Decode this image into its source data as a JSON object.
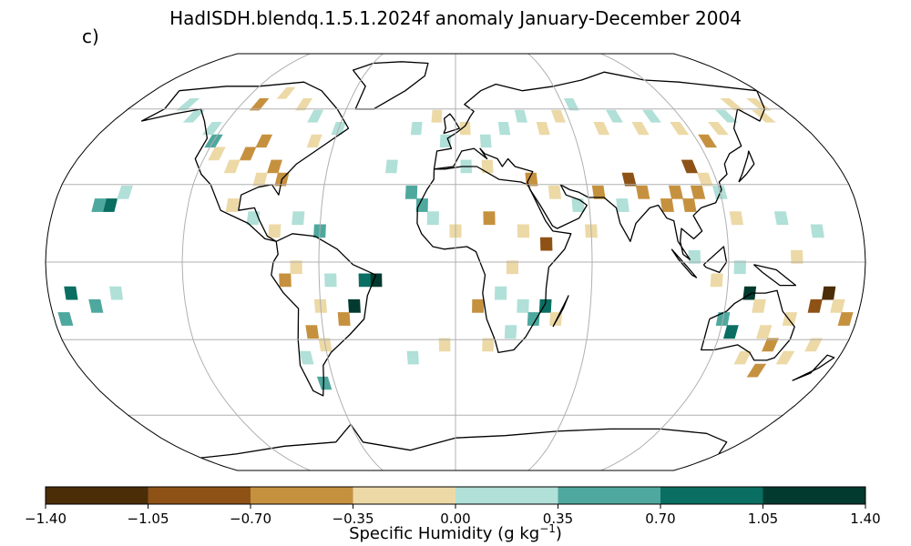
{
  "title": "HadISDH.blendq.1.5.1.2024f anomaly January-December 2004",
  "panel_label": "c)",
  "colorbar": {
    "label_text": "Specific Humidity (g kg",
    "label_sup": "−1",
    "label_close": ")",
    "ticks": [
      "−1.40",
      "−1.05",
      "−0.70",
      "−0.35",
      "0.00",
      "0.35",
      "0.70",
      "1.05",
      "1.40"
    ],
    "colors": [
      "#4b2d08",
      "#8e5216",
      "#c6913f",
      "#ecd9a6",
      "#b0e0d8",
      "#4ea89e",
      "#0a6e62",
      "#023a30"
    ]
  },
  "map": {
    "projection": "Robinson",
    "gridlines": true,
    "anomaly_cells": [
      {
        "lon": -100,
        "lat": 42,
        "bin": 2
      },
      {
        "lon": -95,
        "lat": 47,
        "bin": 2
      },
      {
        "lon": -85,
        "lat": 37,
        "bin": 2
      },
      {
        "lon": -80,
        "lat": 32,
        "bin": 2
      },
      {
        "lon": -90,
        "lat": 32,
        "bin": 3
      },
      {
        "lon": -105,
        "lat": 37,
        "bin": 3
      },
      {
        "lon": -115,
        "lat": 42,
        "bin": 3
      },
      {
        "lon": -120,
        "lat": 47,
        "bin": 5
      },
      {
        "lon": -125,
        "lat": 52,
        "bin": 4
      },
      {
        "lon": -140,
        "lat": 57,
        "bin": 4
      },
      {
        "lon": -150,
        "lat": 62,
        "bin": 4
      },
      {
        "lon": -110,
        "lat": 62,
        "bin": 2
      },
      {
        "lon": -100,
        "lat": 67,
        "bin": 3
      },
      {
        "lon": -85,
        "lat": 62,
        "bin": 3
      },
      {
        "lon": -75,
        "lat": 57,
        "bin": 4
      },
      {
        "lon": -60,
        "lat": 52,
        "bin": 4
      },
      {
        "lon": -70,
        "lat": 47,
        "bin": 3
      },
      {
        "lon": -155,
        "lat": 22,
        "bin": 6
      },
      {
        "lon": -160,
        "lat": 22,
        "bin": 5
      },
      {
        "lon": -150,
        "lat": 27,
        "bin": 4
      },
      {
        "lon": -100,
        "lat": 22,
        "bin": 3
      },
      {
        "lon": -90,
        "lat": 17,
        "bin": 4
      },
      {
        "lon": -80,
        "lat": 12,
        "bin": 3
      },
      {
        "lon": -70,
        "lat": 17,
        "bin": 4
      },
      {
        "lon": -60,
        "lat": 12,
        "bin": 5
      },
      {
        "lon": -35,
        "lat": -7,
        "bin": 7
      },
      {
        "lon": -40,
        "lat": -7,
        "bin": 6
      },
      {
        "lon": -45,
        "lat": -17,
        "bin": 7
      },
      {
        "lon": -50,
        "lat": -22,
        "bin": 2
      },
      {
        "lon": -60,
        "lat": -17,
        "bin": 3
      },
      {
        "lon": -65,
        "lat": -27,
        "bin": 2
      },
      {
        "lon": -60,
        "lat": -32,
        "bin": 3
      },
      {
        "lon": -70,
        "lat": -37,
        "bin": 4
      },
      {
        "lon": -75,
        "lat": -7,
        "bin": 2
      },
      {
        "lon": -70,
        "lat": -2,
        "bin": 3
      },
      {
        "lon": -55,
        "lat": -7,
        "bin": 4
      },
      {
        "lon": -65,
        "lat": -47,
        "bin": 5
      },
      {
        "lon": -170,
        "lat": -12,
        "bin": 6
      },
      {
        "lon": -160,
        "lat": -17,
        "bin": 5
      },
      {
        "lon": -175,
        "lat": -22,
        "bin": 5
      },
      {
        "lon": -150,
        "lat": -12,
        "bin": 4
      },
      {
        "lon": -30,
        "lat": 37,
        "bin": 4
      },
      {
        "lon": -20,
        "lat": 52,
        "bin": 4
      },
      {
        "lon": -10,
        "lat": 57,
        "bin": 3
      },
      {
        "lon": -5,
        "lat": 47,
        "bin": 4
      },
      {
        "lon": 5,
        "lat": 52,
        "bin": 3
      },
      {
        "lon": 15,
        "lat": 47,
        "bin": 4
      },
      {
        "lon": 25,
        "lat": 52,
        "bin": 4
      },
      {
        "lon": 35,
        "lat": 57,
        "bin": 4
      },
      {
        "lon": 45,
        "lat": 52,
        "bin": 3
      },
      {
        "lon": 55,
        "lat": 57,
        "bin": 3
      },
      {
        "lon": 65,
        "lat": 62,
        "bin": 4
      },
      {
        "lon": 75,
        "lat": 52,
        "bin": 3
      },
      {
        "lon": 85,
        "lat": 57,
        "bin": 4
      },
      {
        "lon": 95,
        "lat": 52,
        "bin": 3
      },
      {
        "lon": 105,
        "lat": 57,
        "bin": 4
      },
      {
        "lon": 115,
        "lat": 52,
        "bin": 3
      },
      {
        "lon": 125,
        "lat": 47,
        "bin": 2
      },
      {
        "lon": 135,
        "lat": 52,
        "bin": 3
      },
      {
        "lon": 145,
        "lat": 57,
        "bin": 4
      },
      {
        "lon": 155,
        "lat": 62,
        "bin": 3
      },
      {
        "lon": 165,
        "lat": 57,
        "bin": 3
      },
      {
        "lon": 170,
        "lat": 62,
        "bin": 3
      },
      {
        "lon": 5,
        "lat": 37,
        "bin": 4
      },
      {
        "lon": 15,
        "lat": 37,
        "bin": 3
      },
      {
        "lon": 35,
        "lat": 32,
        "bin": 2
      },
      {
        "lon": 45,
        "lat": 27,
        "bin": 3
      },
      {
        "lon": 55,
        "lat": 22,
        "bin": 4
      },
      {
        "lon": 65,
        "lat": 27,
        "bin": 2
      },
      {
        "lon": 75,
        "lat": 22,
        "bin": 4
      },
      {
        "lon": 85,
        "lat": 27,
        "bin": 2
      },
      {
        "lon": 95,
        "lat": 22,
        "bin": 2
      },
      {
        "lon": 100,
        "lat": 27,
        "bin": 2
      },
      {
        "lon": 105,
        "lat": 22,
        "bin": 2
      },
      {
        "lon": 110,
        "lat": 27,
        "bin": 2
      },
      {
        "lon": 115,
        "lat": 32,
        "bin": 3
      },
      {
        "lon": 120,
        "lat": 27,
        "bin": 4
      },
      {
        "lon": 125,
        "lat": 17,
        "bin": 3
      },
      {
        "lon": 80,
        "lat": 32,
        "bin": 1
      },
      {
        "lon": 110,
        "lat": 37,
        "bin": 1
      },
      {
        "lon": 60,
        "lat": 12,
        "bin": 3
      },
      {
        "lon": 30,
        "lat": 12,
        "bin": 3
      },
      {
        "lon": 15,
        "lat": 17,
        "bin": 2
      },
      {
        "lon": 0,
        "lat": 12,
        "bin": 3
      },
      {
        "lon": -10,
        "lat": 17,
        "bin": 4
      },
      {
        "lon": -15,
        "lat": 22,
        "bin": 5
      },
      {
        "lon": -20,
        "lat": 27,
        "bin": 5
      },
      {
        "lon": 40,
        "lat": 7,
        "bin": 1
      },
      {
        "lon": 25,
        "lat": -2,
        "bin": 3
      },
      {
        "lon": 20,
        "lat": -12,
        "bin": 4
      },
      {
        "lon": 30,
        "lat": -17,
        "bin": 4
      },
      {
        "lon": 25,
        "lat": -27,
        "bin": 4
      },
      {
        "lon": 10,
        "lat": -17,
        "bin": 2
      },
      {
        "lon": 35,
        "lat": -22,
        "bin": 5
      },
      {
        "lon": 40,
        "lat": -17,
        "bin": 6
      },
      {
        "lon": 45,
        "lat": -22,
        "bin": 3
      },
      {
        "lon": 15,
        "lat": -32,
        "bin": 3
      },
      {
        "lon": -5,
        "lat": -32,
        "bin": 3
      },
      {
        "lon": -20,
        "lat": -37,
        "bin": 4
      },
      {
        "lon": 105,
        "lat": 2,
        "bin": 4
      },
      {
        "lon": 115,
        "lat": -7,
        "bin": 3
      },
      {
        "lon": 125,
        "lat": -2,
        "bin": 4
      },
      {
        "lon": 130,
        "lat": -12,
        "bin": 7
      },
      {
        "lon": 135,
        "lat": -17,
        "bin": 3
      },
      {
        "lon": 120,
        "lat": -22,
        "bin": 5
      },
      {
        "lon": 125,
        "lat": -27,
        "bin": 6
      },
      {
        "lon": 140,
        "lat": -27,
        "bin": 3
      },
      {
        "lon": 145,
        "lat": -32,
        "bin": 2
      },
      {
        "lon": 150,
        "lat": -22,
        "bin": 3
      },
      {
        "lon": 160,
        "lat": -17,
        "bin": 1
      },
      {
        "lon": 165,
        "lat": -12,
        "bin": 0
      },
      {
        "lon": 170,
        "lat": -17,
        "bin": 3
      },
      {
        "lon": 175,
        "lat": -22,
        "bin": 2
      },
      {
        "lon": 165,
        "lat": -32,
        "bin": 3
      },
      {
        "lon": 155,
        "lat": -37,
        "bin": 3
      },
      {
        "lon": 145,
        "lat": -42,
        "bin": 2
      },
      {
        "lon": 135,
        "lat": -37,
        "bin": 3
      },
      {
        "lon": 160,
        "lat": 12,
        "bin": 4
      },
      {
        "lon": 145,
        "lat": 17,
        "bin": 4
      },
      {
        "lon": 150,
        "lat": 2,
        "bin": 3
      }
    ]
  }
}
